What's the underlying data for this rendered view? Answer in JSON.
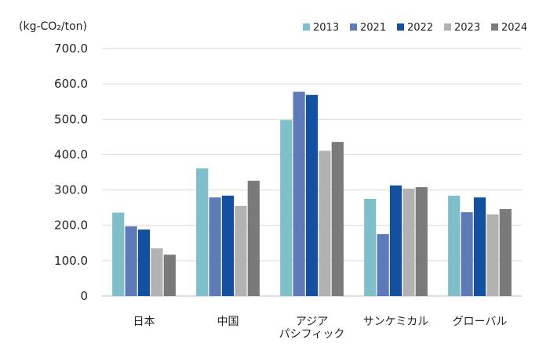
{
  "chart_data": {
    "type": "bar",
    "unit_label": "(kg-CO₂/ton)",
    "categories": [
      {
        "lines": [
          "日本"
        ]
      },
      {
        "lines": [
          "中国"
        ]
      },
      {
        "lines": [
          "アジア",
          "パシフィック"
        ]
      },
      {
        "lines": [
          "サンケミカル"
        ]
      },
      {
        "lines": [
          "グローバル"
        ]
      }
    ],
    "series": [
      {
        "name": "2013",
        "color": "#7fbfc9",
        "values": [
          236,
          361,
          498,
          275,
          284
        ]
      },
      {
        "name": "2021",
        "color": "#5f7ab8",
        "values": [
          197,
          279,
          578,
          175,
          237
        ]
      },
      {
        "name": "2022",
        "color": "#1450a0",
        "values": [
          188,
          284,
          569,
          313,
          279
        ]
      },
      {
        "name": "2023",
        "color": "#b2b2b2",
        "values": [
          135,
          255,
          411,
          304,
          231
        ]
      },
      {
        "name": "2024",
        "color": "#7a7a7a",
        "values": [
          117,
          326,
          436,
          308,
          246
        ]
      }
    ],
    "ylim": [
      0,
      700
    ],
    "yticks": [
      "0",
      "100.0",
      "200.0",
      "300.0",
      "400.0",
      "500.0",
      "600.0",
      "700.0"
    ],
    "grid": true,
    "legend_position": "top-right"
  }
}
